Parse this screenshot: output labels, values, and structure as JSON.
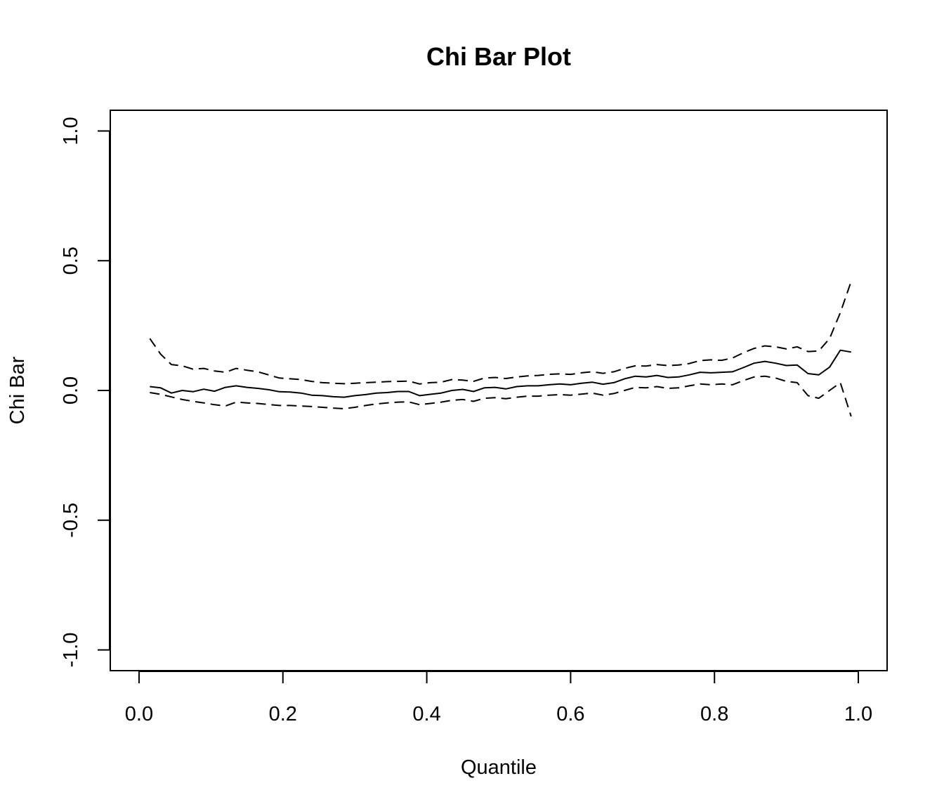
{
  "chart_data": {
    "type": "line",
    "title": "Chi Bar Plot",
    "xlabel": "Quantile",
    "ylabel": "Chi Bar",
    "xlim": [
      -0.04,
      1.04
    ],
    "ylim": [
      -1.08,
      1.08
    ],
    "x_ticks": [
      0.0,
      0.2,
      0.4,
      0.6,
      0.8,
      1.0
    ],
    "x_tick_labels": [
      "0.0",
      "0.2",
      "0.4",
      "0.6",
      "0.8",
      "1.0"
    ],
    "y_ticks": [
      -1.0,
      -0.5,
      0.0,
      0.5,
      1.0
    ],
    "y_tick_labels": [
      "-1.0",
      "-0.5",
      "0.0",
      "0.5",
      "1.0"
    ],
    "grid": false,
    "legend": "none",
    "x": [
      0.015,
      0.03,
      0.045,
      0.06,
      0.075,
      0.09,
      0.105,
      0.12,
      0.135,
      0.15,
      0.165,
      0.18,
      0.195,
      0.21,
      0.225,
      0.24,
      0.255,
      0.27,
      0.285,
      0.3,
      0.315,
      0.33,
      0.345,
      0.36,
      0.375,
      0.39,
      0.405,
      0.42,
      0.435,
      0.45,
      0.465,
      0.48,
      0.495,
      0.51,
      0.525,
      0.54,
      0.555,
      0.57,
      0.585,
      0.6,
      0.615,
      0.63,
      0.645,
      0.66,
      0.675,
      0.69,
      0.705,
      0.72,
      0.735,
      0.75,
      0.765,
      0.78,
      0.795,
      0.81,
      0.825,
      0.84,
      0.855,
      0.87,
      0.885,
      0.9,
      0.915,
      0.93,
      0.945,
      0.96,
      0.975,
      0.99
    ],
    "series": [
      {
        "style": "solid",
        "values": [
          0.015,
          0.01,
          -0.01,
          0.0,
          -0.005,
          0.005,
          -0.003,
          0.012,
          0.018,
          0.012,
          0.008,
          0.003,
          -0.005,
          -0.006,
          -0.01,
          -0.018,
          -0.02,
          -0.024,
          -0.026,
          -0.02,
          -0.016,
          -0.01,
          -0.008,
          -0.004,
          -0.004,
          -0.02,
          -0.015,
          -0.01,
          0.0,
          0.004,
          -0.004,
          0.01,
          0.012,
          0.006,
          0.015,
          0.018,
          0.018,
          0.022,
          0.025,
          0.022,
          0.028,
          0.032,
          0.024,
          0.03,
          0.045,
          0.055,
          0.052,
          0.058,
          0.05,
          0.052,
          0.06,
          0.07,
          0.068,
          0.07,
          0.072,
          0.088,
          0.105,
          0.112,
          0.105,
          0.096,
          0.098,
          0.065,
          0.06,
          0.09,
          0.155,
          0.148
        ]
      },
      {
        "style": "dashed",
        "values": [
          0.2,
          0.14,
          0.1,
          0.095,
          0.082,
          0.085,
          0.075,
          0.07,
          0.085,
          0.078,
          0.072,
          0.06,
          0.048,
          0.045,
          0.042,
          0.035,
          0.03,
          0.028,
          0.026,
          0.028,
          0.03,
          0.032,
          0.034,
          0.035,
          0.036,
          0.025,
          0.03,
          0.032,
          0.042,
          0.04,
          0.035,
          0.048,
          0.05,
          0.046,
          0.052,
          0.056,
          0.058,
          0.062,
          0.064,
          0.062,
          0.068,
          0.072,
          0.066,
          0.072,
          0.085,
          0.095,
          0.094,
          0.1,
          0.096,
          0.098,
          0.104,
          0.115,
          0.118,
          0.116,
          0.125,
          0.145,
          0.162,
          0.172,
          0.168,
          0.16,
          0.168,
          0.15,
          0.152,
          0.2,
          0.3,
          0.42
        ]
      },
      {
        "style": "dashed",
        "values": [
          -0.008,
          -0.015,
          -0.025,
          -0.035,
          -0.042,
          -0.048,
          -0.055,
          -0.06,
          -0.045,
          -0.048,
          -0.05,
          -0.054,
          -0.058,
          -0.058,
          -0.06,
          -0.062,
          -0.065,
          -0.068,
          -0.07,
          -0.065,
          -0.058,
          -0.052,
          -0.048,
          -0.045,
          -0.044,
          -0.055,
          -0.05,
          -0.045,
          -0.038,
          -0.035,
          -0.042,
          -0.03,
          -0.028,
          -0.032,
          -0.026,
          -0.022,
          -0.022,
          -0.018,
          -0.016,
          -0.018,
          -0.014,
          -0.01,
          -0.018,
          -0.012,
          0.0,
          0.012,
          0.01,
          0.015,
          0.008,
          0.01,
          0.018,
          0.025,
          0.022,
          0.025,
          0.022,
          0.038,
          0.052,
          0.055,
          0.048,
          0.035,
          0.03,
          -0.02,
          -0.03,
          0.0,
          0.03,
          -0.1
        ]
      }
    ]
  }
}
